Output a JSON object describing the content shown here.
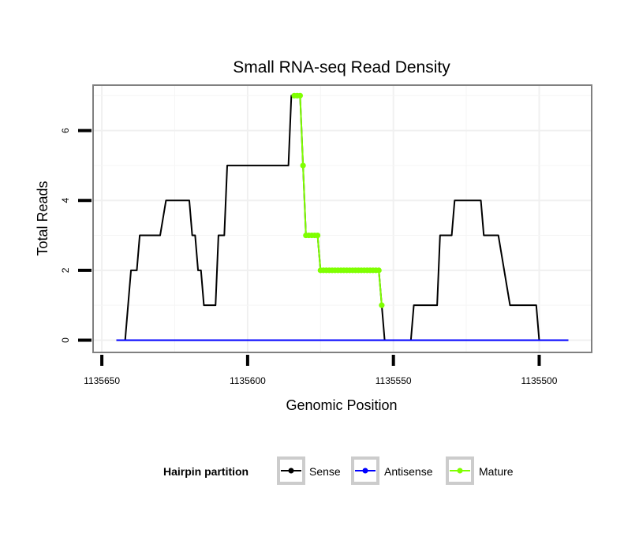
{
  "chart_data": {
    "type": "line",
    "title": "Small RNA-seq Read Density",
    "xlabel": "Genomic Position",
    "ylabel": "Total Reads",
    "xlim": [
      1135653,
      1135482
    ],
    "ylim": [
      -0.35,
      7.3
    ],
    "x_reversed": true,
    "x_ticks": [
      1135650,
      1135600,
      1135550,
      1135500
    ],
    "x_tick_labels": [
      "1135650",
      "1135600",
      "1135550",
      "1135500"
    ],
    "y_ticks": [
      0,
      2,
      4,
      6
    ],
    "y_tick_labels": [
      "0",
      "2",
      "4",
      "6"
    ],
    "grid": true,
    "legend": {
      "title": "Hairpin partition",
      "position": "bottom",
      "entries": [
        {
          "label": "Sense",
          "color": "#000000"
        },
        {
          "label": "Antisense",
          "color": "#0000ff"
        },
        {
          "label": "Mature",
          "color": "#7fff00"
        }
      ]
    },
    "series": [
      {
        "name": "Sense",
        "color": "#000000",
        "points": [
          [
            1135645,
            0
          ],
          [
            1135642,
            0
          ],
          [
            1135640,
            2
          ],
          [
            1135638,
            2
          ],
          [
            1135637,
            3
          ],
          [
            1135635,
            3
          ],
          [
            1135630,
            3
          ],
          [
            1135628,
            4
          ],
          [
            1135625,
            4
          ],
          [
            1135620,
            4
          ],
          [
            1135619,
            3
          ],
          [
            1135618,
            3
          ],
          [
            1135617,
            2
          ],
          [
            1135616,
            2
          ],
          [
            1135615,
            1
          ],
          [
            1135611,
            1
          ],
          [
            1135610,
            3
          ],
          [
            1135608,
            3
          ],
          [
            1135607,
            5
          ],
          [
            1135600,
            5
          ],
          [
            1135590,
            5
          ],
          [
            1135586,
            5
          ],
          [
            1135585,
            7
          ],
          [
            1135582,
            7
          ],
          [
            1135581,
            5
          ],
          [
            1135580,
            3
          ],
          [
            1135576,
            3
          ],
          [
            1135575,
            2
          ],
          [
            1135565,
            2
          ],
          [
            1135555,
            2
          ],
          [
            1135554,
            1
          ],
          [
            1135553,
            0
          ],
          [
            1135544,
            0
          ],
          [
            1135543,
            1
          ],
          [
            1135540,
            1
          ],
          [
            1135535,
            1
          ],
          [
            1135534,
            3
          ],
          [
            1135530,
            3
          ],
          [
            1135529,
            4
          ],
          [
            1135525,
            4
          ],
          [
            1135520,
            4
          ],
          [
            1135519,
            3
          ],
          [
            1135515,
            3
          ],
          [
            1135514,
            3
          ],
          [
            1135510,
            1
          ],
          [
            1135501,
            1
          ],
          [
            1135500,
            0
          ],
          [
            1135490,
            0
          ]
        ]
      },
      {
        "name": "Antisense",
        "color": "#0000ff",
        "points": [
          [
            1135645,
            0
          ],
          [
            1135490,
            0
          ]
        ]
      },
      {
        "name": "Mature",
        "color": "#7fff00",
        "points": [
          [
            1135584,
            7
          ],
          [
            1135583,
            7
          ],
          [
            1135582,
            7
          ],
          [
            1135581,
            5
          ],
          [
            1135580,
            3
          ],
          [
            1135579,
            3
          ],
          [
            1135578,
            3
          ],
          [
            1135577,
            3
          ],
          [
            1135576,
            3
          ],
          [
            1135575,
            2
          ],
          [
            1135574,
            2
          ],
          [
            1135573,
            2
          ],
          [
            1135572,
            2
          ],
          [
            1135571,
            2
          ],
          [
            1135570,
            2
          ],
          [
            1135569,
            2
          ],
          [
            1135568,
            2
          ],
          [
            1135567,
            2
          ],
          [
            1135566,
            2
          ],
          [
            1135565,
            2
          ],
          [
            1135564,
            2
          ],
          [
            1135563,
            2
          ],
          [
            1135562,
            2
          ],
          [
            1135561,
            2
          ],
          [
            1135560,
            2
          ],
          [
            1135559,
            2
          ],
          [
            1135558,
            2
          ],
          [
            1135557,
            2
          ],
          [
            1135556,
            2
          ],
          [
            1135555,
            2
          ],
          [
            1135554,
            1
          ]
        ]
      }
    ]
  }
}
